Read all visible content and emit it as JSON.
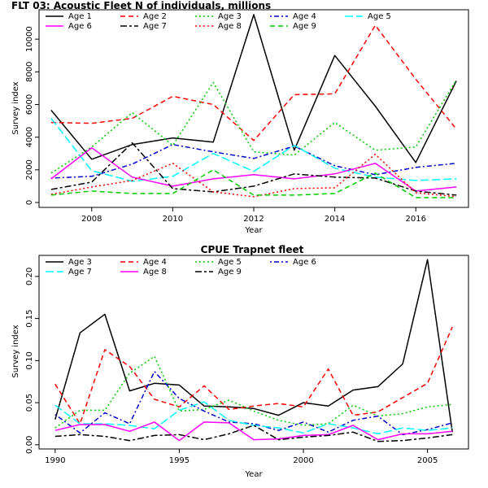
{
  "chart_data": [
    {
      "type": "line",
      "title": "FLT 03: Acoustic Fleet   N of individuals, millions",
      "xlabel": "Year",
      "ylabel": "Survey index",
      "xlim": [
        2006.7,
        2017.3
      ],
      "ylim": [
        -300,
        11800
      ],
      "xticks": [
        2008,
        2010,
        2012,
        2014,
        2016
      ],
      "yticks": [
        0,
        2000,
        4000,
        6000,
        8000,
        10000
      ],
      "x": [
        2007,
        2008,
        2009,
        2010,
        2011,
        2012,
        2013,
        2014,
        2015,
        2016,
        2017
      ],
      "legend_position": "top-left",
      "series": [
        {
          "name": "Age 1",
          "color": "#000000",
          "dash": "solid",
          "values": [
            5650,
            2650,
            3550,
            3950,
            3700,
            11500,
            3200,
            9000,
            5900,
            2450,
            7450
          ]
        },
        {
          "name": "Age 2",
          "color": "#ff0000",
          "dash": "dashed",
          "values": [
            4900,
            4850,
            5150,
            6500,
            6000,
            3800,
            6600,
            6650,
            10850,
            7550,
            4500
          ]
        },
        {
          "name": "Age 3",
          "color": "#00cd00",
          "dash": "dotted",
          "values": [
            1800,
            3400,
            5500,
            3500,
            7350,
            3100,
            2900,
            4900,
            3200,
            3400,
            7500
          ]
        },
        {
          "name": "Age 4",
          "color": "#0000cd",
          "dash": "dotdash",
          "values": [
            1500,
            1600,
            2350,
            3550,
            3100,
            2700,
            3450,
            2250,
            1700,
            2150,
            2400
          ]
        },
        {
          "name": "Age 5",
          "color": "#00ffff",
          "dash": "longdash",
          "values": [
            5150,
            1950,
            1300,
            1600,
            3000,
            1900,
            3500,
            2100,
            1550,
            1350,
            1450
          ]
        },
        {
          "name": "Age 6",
          "color": "#ff00ff",
          "dash": "solid",
          "values": [
            1450,
            3350,
            1550,
            1000,
            1450,
            1700,
            1450,
            1750,
            2400,
            700,
            950
          ]
        },
        {
          "name": "Age 7",
          "color": "#000000",
          "dash": "twodash",
          "values": [
            800,
            1250,
            3650,
            850,
            650,
            1000,
            1750,
            1550,
            1500,
            700,
            450
          ]
        },
        {
          "name": "Age 8",
          "color": "#ff0000",
          "dash": "dotted",
          "values": [
            500,
            950,
            1350,
            2400,
            650,
            350,
            850,
            900,
            2950,
            600,
            350
          ]
        },
        {
          "name": "Age 9",
          "color": "#00cd00",
          "dash": "dashed",
          "values": [
            450,
            700,
            550,
            550,
            2000,
            450,
            450,
            550,
            1800,
            300,
            300
          ]
        }
      ]
    },
    {
      "type": "line",
      "title": "CPUE Trapnet fleet",
      "xlabel": "Year",
      "ylabel": "Survey index",
      "xlim": [
        1989.35,
        2006.65
      ],
      "ylim": [
        -0.005,
        0.225
      ],
      "xticks": [
        1990,
        1995,
        2000,
        2005
      ],
      "yticks": [
        0.0,
        0.05,
        0.1,
        0.15,
        0.2
      ],
      "ytick_labels": [
        "0.00",
        "0.05",
        "0.10",
        "0.15",
        "0.20"
      ],
      "x": [
        1990,
        1991,
        1992,
        1993,
        1994,
        1995,
        1996,
        1997,
        1998,
        1999,
        2000,
        2001,
        2002,
        2003,
        2004,
        2005,
        2006
      ],
      "legend_position": "top-left",
      "series": [
        {
          "name": "Age 3",
          "color": "#000000",
          "dash": "solid",
          "values": [
            0.03,
            0.133,
            0.155,
            0.064,
            0.073,
            0.071,
            0.046,
            0.045,
            0.043,
            0.035,
            0.05,
            0.046,
            0.065,
            0.069,
            0.096,
            0.22,
            0.015
          ]
        },
        {
          "name": "Age 4",
          "color": "#ff0000",
          "dash": "dashed",
          "values": [
            0.072,
            0.025,
            0.113,
            0.093,
            0.054,
            0.045,
            0.07,
            0.042,
            0.046,
            0.049,
            0.045,
            0.09,
            0.035,
            0.039,
            0.056,
            0.073,
            0.14
          ]
        },
        {
          "name": "Age 5",
          "color": "#00cd00",
          "dash": "dotted",
          "values": [
            0.02,
            0.041,
            0.041,
            0.085,
            0.105,
            0.04,
            0.042,
            0.053,
            0.04,
            0.029,
            0.023,
            0.025,
            0.047,
            0.034,
            0.037,
            0.045,
            0.048
          ]
        },
        {
          "name": "Age 6",
          "color": "#0000cd",
          "dash": "dotdash",
          "values": [
            0.036,
            0.014,
            0.038,
            0.025,
            0.087,
            0.055,
            0.04,
            0.027,
            0.025,
            0.017,
            0.027,
            0.015,
            0.029,
            0.034,
            0.012,
            0.018,
            0.026
          ]
        },
        {
          "name": "Age 7",
          "color": "#00ffff",
          "dash": "longdash",
          "values": [
            0.047,
            0.025,
            0.025,
            0.023,
            0.019,
            0.041,
            0.051,
            0.029,
            0.023,
            0.02,
            0.014,
            0.025,
            0.02,
            0.013,
            0.02,
            0.017,
            0.02
          ]
        },
        {
          "name": "Age 8",
          "color": "#ff00ff",
          "dash": "solid",
          "values": [
            0.017,
            0.024,
            0.024,
            0.016,
            0.027,
            0.005,
            0.027,
            0.026,
            0.006,
            0.007,
            0.011,
            0.012,
            0.023,
            0.006,
            0.013,
            0.013,
            0.016
          ]
        },
        {
          "name": "Age 9",
          "color": "#000000",
          "dash": "twodash",
          "values": [
            0.01,
            0.012,
            0.01,
            0.005,
            0.011,
            0.012,
            0.006,
            0.013,
            0.023,
            0.006,
            0.009,
            0.011,
            0.015,
            0.004,
            0.005,
            0.008,
            0.012
          ]
        }
      ]
    }
  ]
}
